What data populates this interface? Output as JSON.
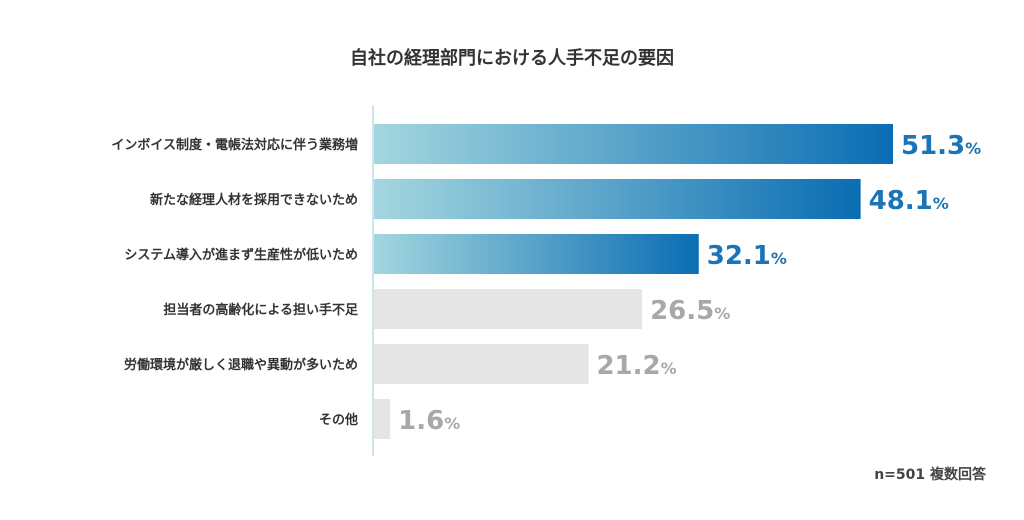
{
  "chart_data": {
    "type": "bar",
    "orientation": "horizontal",
    "title": "自社の経理部門における人手不足の要因",
    "categories": [
      "インボイス制度・電帳法対応に伴う業務増",
      "新たな経理人材を採用できないため",
      "システム導入が進まず生産性が低いため",
      "担当者の高齢化による担い手不足",
      "労働環境が厳しく退職や異動が多いため",
      "その他"
    ],
    "values": [
      51.3,
      48.1,
      32.1,
      26.5,
      21.2,
      1.6
    ],
    "highlighted": [
      true,
      true,
      true,
      false,
      false,
      false
    ],
    "unit": "%",
    "xlim": [
      0,
      65
    ],
    "grid": false,
    "note": "n=501 複数回答",
    "colors": {
      "gradient_start": "#a3d6df",
      "gradient_end": "#0a6db3",
      "highlight_text": "#1a74b6",
      "muted_bar": "#e5e5e5",
      "muted_text": "#a8a8a8",
      "axis": "#b9dde3"
    }
  }
}
